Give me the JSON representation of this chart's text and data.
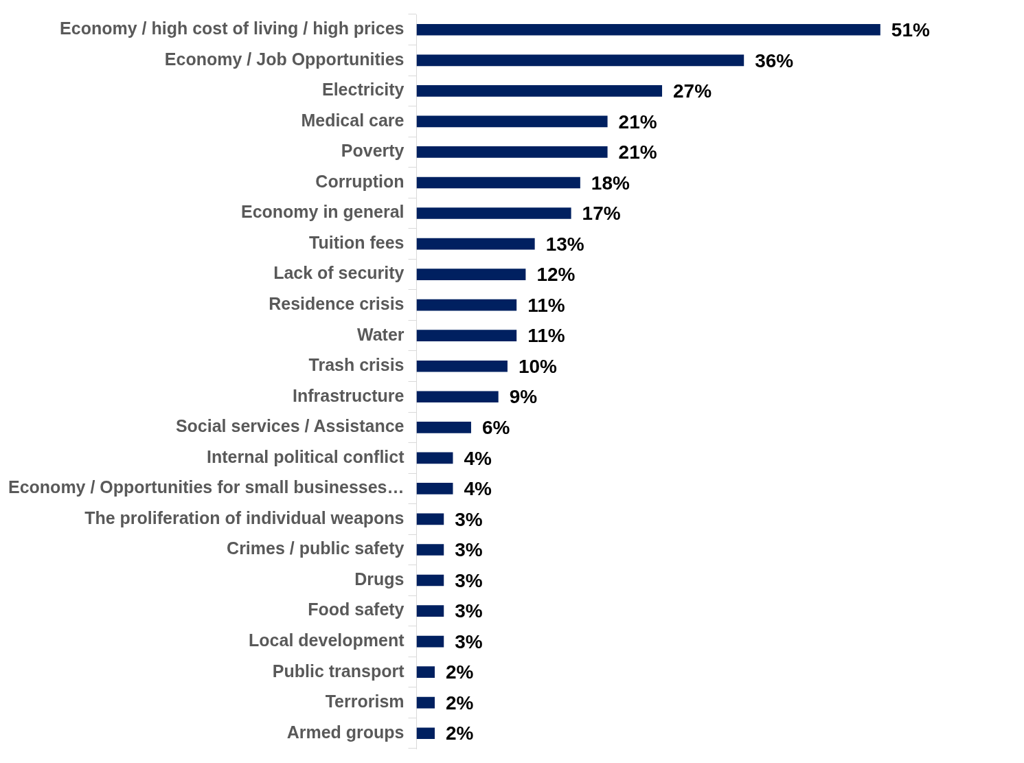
{
  "chart_data": {
    "type": "bar",
    "orientation": "horizontal",
    "tick_labels": "y",
    "categories": [
      "Economy / high cost of living / high prices",
      "Economy / Job Opportunities",
      "Electricity",
      "Medical care",
      "Poverty",
      "Corruption",
      "Economy in general",
      "Tuition fees",
      "Lack of security",
      "Residence crisis",
      "Water",
      "Trash crisis",
      "Infrastructure",
      "Social services / Assistance",
      "Internal political conflict",
      "Economy / Opportunities for small businesses…",
      "The proliferation of individual weapons",
      "Crimes / public safety",
      "Drugs",
      "Food safety",
      "Local development",
      "Public transport",
      "Terrorism",
      "Armed groups"
    ],
    "values": [
      51,
      36,
      27,
      21,
      21,
      18,
      17,
      13,
      12,
      11,
      11,
      10,
      9,
      6,
      4,
      4,
      3,
      3,
      3,
      3,
      3,
      2,
      2,
      2
    ],
    "value_labels": [
      "51%",
      "36%",
      "27%",
      "21%",
      "21%",
      "18%",
      "17%",
      "13%",
      "12%",
      "11%",
      "11%",
      "10%",
      "9%",
      "6%",
      "4%",
      "4%",
      "3%",
      "3%",
      "3%",
      "3%",
      "3%",
      "2%",
      "2%",
      "2%"
    ],
    "color": "#002060"
  }
}
